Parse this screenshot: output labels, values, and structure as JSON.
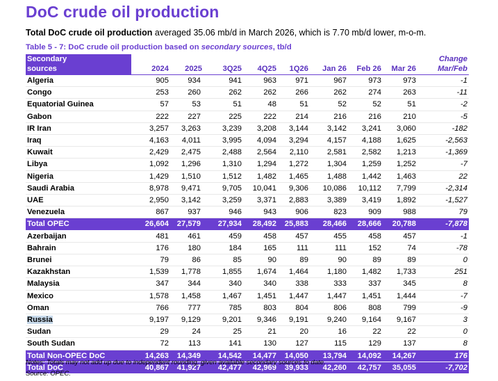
{
  "title": "DoC crude oil production",
  "subtitle": {
    "bold": "Total DoC crude oil production",
    "rest": " averaged 35.06 mb/d in March 2026, which is 7.70 mb/d lower, m-o-m."
  },
  "table_caption": {
    "prefix": "Table 5 - 7: DoC crude oil production based on ",
    "italic": "secondary sources",
    "suffix": ", tb/d"
  },
  "header": {
    "source_line1": "Secondary",
    "source_line2": "sources",
    "change_line1": "Change",
    "change_line2": "Mar/Feb",
    "columns": [
      "2024",
      "2025",
      "3Q25",
      "4Q25",
      "1Q26",
      "Jan 26",
      "Feb 26",
      "Mar 26"
    ]
  },
  "opec_rows": [
    {
      "name": "Algeria",
      "v": [
        "905",
        "934",
        "941",
        "963",
        "971",
        "967",
        "973",
        "973"
      ],
      "chg": "-1"
    },
    {
      "name": "Congo",
      "v": [
        "253",
        "260",
        "262",
        "262",
        "266",
        "262",
        "274",
        "263"
      ],
      "chg": "-11"
    },
    {
      "name": "Equatorial Guinea",
      "v": [
        "57",
        "53",
        "51",
        "48",
        "51",
        "52",
        "52",
        "51"
      ],
      "chg": "-2"
    },
    {
      "name": "Gabon",
      "v": [
        "222",
        "227",
        "225",
        "222",
        "214",
        "216",
        "216",
        "210"
      ],
      "chg": "-5"
    },
    {
      "name": "IR Iran",
      "v": [
        "3,257",
        "3,263",
        "3,239",
        "3,208",
        "3,144",
        "3,142",
        "3,241",
        "3,060"
      ],
      "chg": "-182"
    },
    {
      "name": "Iraq",
      "v": [
        "4,163",
        "4,011",
        "3,995",
        "4,094",
        "3,294",
        "4,157",
        "4,188",
        "1,625"
      ],
      "chg": "-2,563"
    },
    {
      "name": "Kuwait",
      "v": [
        "2,429",
        "2,475",
        "2,488",
        "2,564",
        "2,110",
        "2,581",
        "2,582",
        "1,213"
      ],
      "chg": "-1,369"
    },
    {
      "name": "Libya",
      "v": [
        "1,092",
        "1,296",
        "1,310",
        "1,294",
        "1,272",
        "1,304",
        "1,259",
        "1,252"
      ],
      "chg": "-7"
    },
    {
      "name": "Nigeria",
      "v": [
        "1,429",
        "1,510",
        "1,512",
        "1,482",
        "1,465",
        "1,488",
        "1,442",
        "1,463"
      ],
      "chg": "22"
    },
    {
      "name": "Saudi Arabia",
      "v": [
        "8,978",
        "9,471",
        "9,705",
        "10,041",
        "9,306",
        "10,086",
        "10,112",
        "7,799"
      ],
      "chg": "-2,314"
    },
    {
      "name": "UAE",
      "v": [
        "2,950",
        "3,142",
        "3,259",
        "3,371",
        "2,883",
        "3,389",
        "3,419",
        "1,892"
      ],
      "chg": "-1,527"
    },
    {
      "name": "Venezuela",
      "v": [
        "867",
        "937",
        "946",
        "943",
        "906",
        "823",
        "909",
        "988"
      ],
      "chg": "79"
    }
  ],
  "total_opec": {
    "name": "Total  OPEC",
    "v": [
      "26,604",
      "27,579",
      "27,934",
      "28,492",
      "25,883",
      "28,466",
      "28,666",
      "20,788"
    ],
    "chg": "-7,878"
  },
  "nonopec_rows": [
    {
      "name": "Azerbaijan",
      "v": [
        "481",
        "461",
        "459",
        "458",
        "457",
        "455",
        "458",
        "457"
      ],
      "chg": "-1"
    },
    {
      "name": "Bahrain",
      "v": [
        "176",
        "180",
        "184",
        "165",
        "111",
        "111",
        "152",
        "74"
      ],
      "chg": "-78"
    },
    {
      "name": "Brunei",
      "v": [
        "79",
        "86",
        "85",
        "90",
        "89",
        "90",
        "89",
        "89"
      ],
      "chg": "0"
    },
    {
      "name": "Kazakhstan",
      "v": [
        "1,539",
        "1,778",
        "1,855",
        "1,674",
        "1,464",
        "1,180",
        "1,482",
        "1,733"
      ],
      "chg": "251"
    },
    {
      "name": "Malaysia",
      "v": [
        "347",
        "344",
        "340",
        "340",
        "338",
        "333",
        "337",
        "345"
      ],
      "chg": "8"
    },
    {
      "name": "Mexico",
      "v": [
        "1,578",
        "1,458",
        "1,467",
        "1,451",
        "1,447",
        "1,447",
        "1,451",
        "1,444"
      ],
      "chg": "-7"
    },
    {
      "name": "Oman",
      "v": [
        "766",
        "777",
        "785",
        "803",
        "804",
        "806",
        "808",
        "799"
      ],
      "chg": "-9"
    },
    {
      "name": "Russia",
      "v": [
        "9,197",
        "9,129",
        "9,201",
        "9,346",
        "9,191",
        "9,240",
        "9,164",
        "9,167"
      ],
      "chg": "3",
      "highlight": true
    },
    {
      "name": "Sudan",
      "v": [
        "29",
        "24",
        "25",
        "21",
        "20",
        "16",
        "22",
        "22"
      ],
      "chg": "0"
    },
    {
      "name": "South Sudan",
      "v": [
        "72",
        "113",
        "141",
        "130",
        "127",
        "115",
        "129",
        "137"
      ],
      "chg": "8"
    }
  ],
  "total_nonopec": {
    "name": "Total Non-OPEC DoC",
    "v": [
      "14,263",
      "14,349",
      "14,542",
      "14,477",
      "14,050",
      "13,794",
      "14,092",
      "14,267"
    ],
    "chg": "176"
  },
  "total_doc": {
    "name": "Total DoC",
    "v": [
      "40,867",
      "41,927",
      "42,477",
      "42,969",
      "39,933",
      "42,260",
      "42,757",
      "35,055"
    ],
    "chg": "-7,702"
  },
  "notes": "Notes: Totals may not add up due to independent rounding, given available secondary sources to date.",
  "source": "Source: OPEC.",
  "colors": {
    "accent": "#6a3fd1",
    "highlight": "#c7d9ea"
  }
}
